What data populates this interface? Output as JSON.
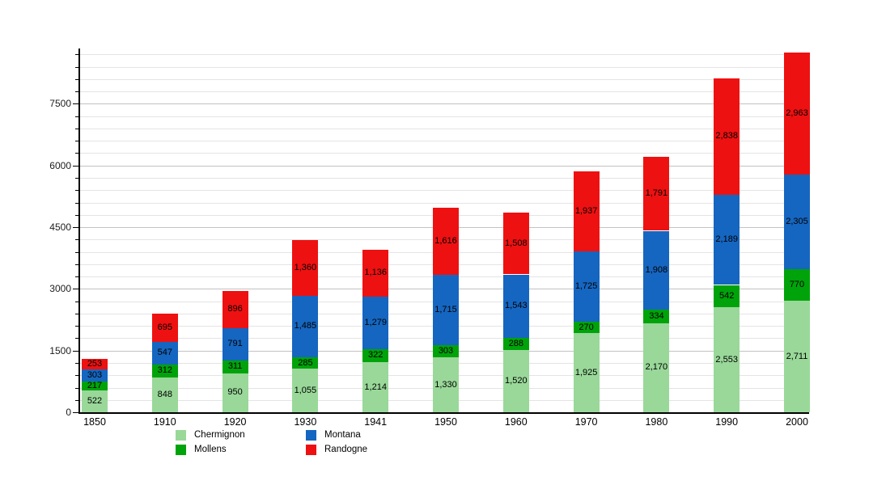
{
  "chart_data": {
    "type": "bar",
    "stacked": true,
    "title": "",
    "xlabel": "",
    "ylabel": "",
    "categories": [
      "1850",
      "1910",
      "1920",
      "1930",
      "1941",
      "1950",
      "1960",
      "1970",
      "1980",
      "1990",
      "2000"
    ],
    "series": [
      {
        "name": "Chermignon",
        "color": "#99d899",
        "values": [
          522,
          848,
          950,
          1055,
          1214,
          1330,
          1520,
          1925,
          2170,
          2553,
          2711
        ]
      },
      {
        "name": "Mollens",
        "color": "#00a30a",
        "values": [
          217,
          312,
          311,
          285,
          322,
          303,
          288,
          270,
          334,
          542,
          770
        ]
      },
      {
        "name": "Montana",
        "color": "#1566c0",
        "values": [
          303,
          547,
          791,
          1485,
          1279,
          1715,
          1543,
          1725,
          1908,
          2189,
          2305
        ]
      },
      {
        "name": "Randogne",
        "color": "#ee1111",
        "values": [
          253,
          695,
          896,
          1360,
          1136,
          1616,
          1508,
          1937,
          1791,
          2838,
          2963
        ]
      }
    ],
    "ylim": [
      0,
      8850
    ],
    "yticks_labeled": [
      "0",
      "1500",
      "3000",
      "4500",
      "6000",
      "7500"
    ],
    "ytick_minor_step": 300,
    "grid": true,
    "legend_position": "bottom",
    "value_labels": "on-segment, black, thousands comma format"
  }
}
